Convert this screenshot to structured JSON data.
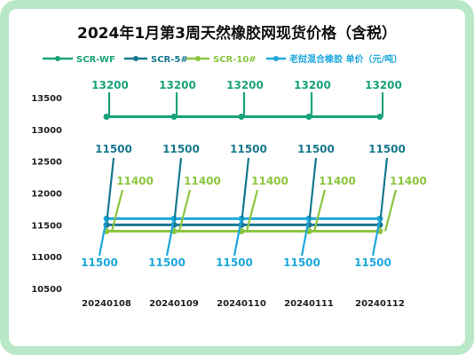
{
  "chart_data": {
    "type": "line",
    "title": "2024年1月第3周天然橡胶网现货价格（含税）",
    "categories": [
      "20240108",
      "20240109",
      "20240110",
      "20240111",
      "20240112"
    ],
    "ylim": [
      10500,
      13500
    ],
    "yticks": [
      10500,
      11000,
      11500,
      12000,
      12500,
      13000,
      13500
    ],
    "series": [
      {
        "name": "SCR-WF",
        "values": [
          13200,
          13200,
          13200,
          13200,
          13200
        ],
        "color": "#1aa37a"
      },
      {
        "name": "SCR-5#",
        "values": [
          11500,
          11500,
          11500,
          11500,
          11500
        ],
        "color": "#18788f"
      },
      {
        "name": "SCR-10#",
        "values": [
          11400,
          11400,
          11400,
          11400,
          11400
        ],
        "color": "#8cc63f"
      },
      {
        "name": "老挝混合橡胶 单价（元/吨）",
        "values": [
          11500,
          11500,
          11500,
          11500,
          11500
        ],
        "color": "#1ca8dd"
      }
    ],
    "data_labels": [
      [
        "13200",
        "13200",
        "13200",
        "13200",
        "13200"
      ],
      [
        "11500",
        "11500",
        "11500",
        "11500",
        "11500"
      ],
      [
        "11400",
        "11400",
        "11400",
        "11400",
        "11400"
      ],
      [
        "11500",
        "11500",
        "11500",
        "11500",
        "11500"
      ]
    ],
    "grid": false,
    "legend_position": "top",
    "frame_color": "#b8e8c8"
  }
}
